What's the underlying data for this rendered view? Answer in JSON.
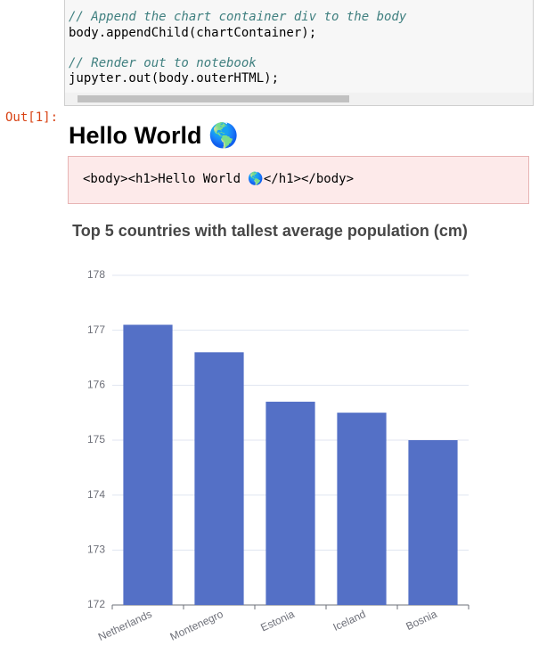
{
  "code": {
    "lines": [
      "// Append the chart container div to the body",
      "body.appendChild(chartContainer);",
      "// Render out to notebook",
      "jupyter.out(body.outerHTML);"
    ]
  },
  "output": {
    "prompt": "Out[1]:",
    "heading": "Hello World 🌎",
    "html": "<body><h1>Hello World 🌎</h1></body>"
  },
  "chart_data": {
    "type": "bar",
    "title": "Top 5 countries with tallest average population (cm)",
    "categories": [
      "Netherlands",
      "Montenegro",
      "Estonia",
      "Iceland",
      "Bosnia"
    ],
    "values": [
      177.1,
      176.6,
      175.7,
      175.5,
      175
    ],
    "color": "#5470c6",
    "ylim": [
      172,
      178
    ],
    "yticks": [
      172,
      173,
      174,
      175,
      176,
      177,
      178
    ],
    "grid": true
  }
}
